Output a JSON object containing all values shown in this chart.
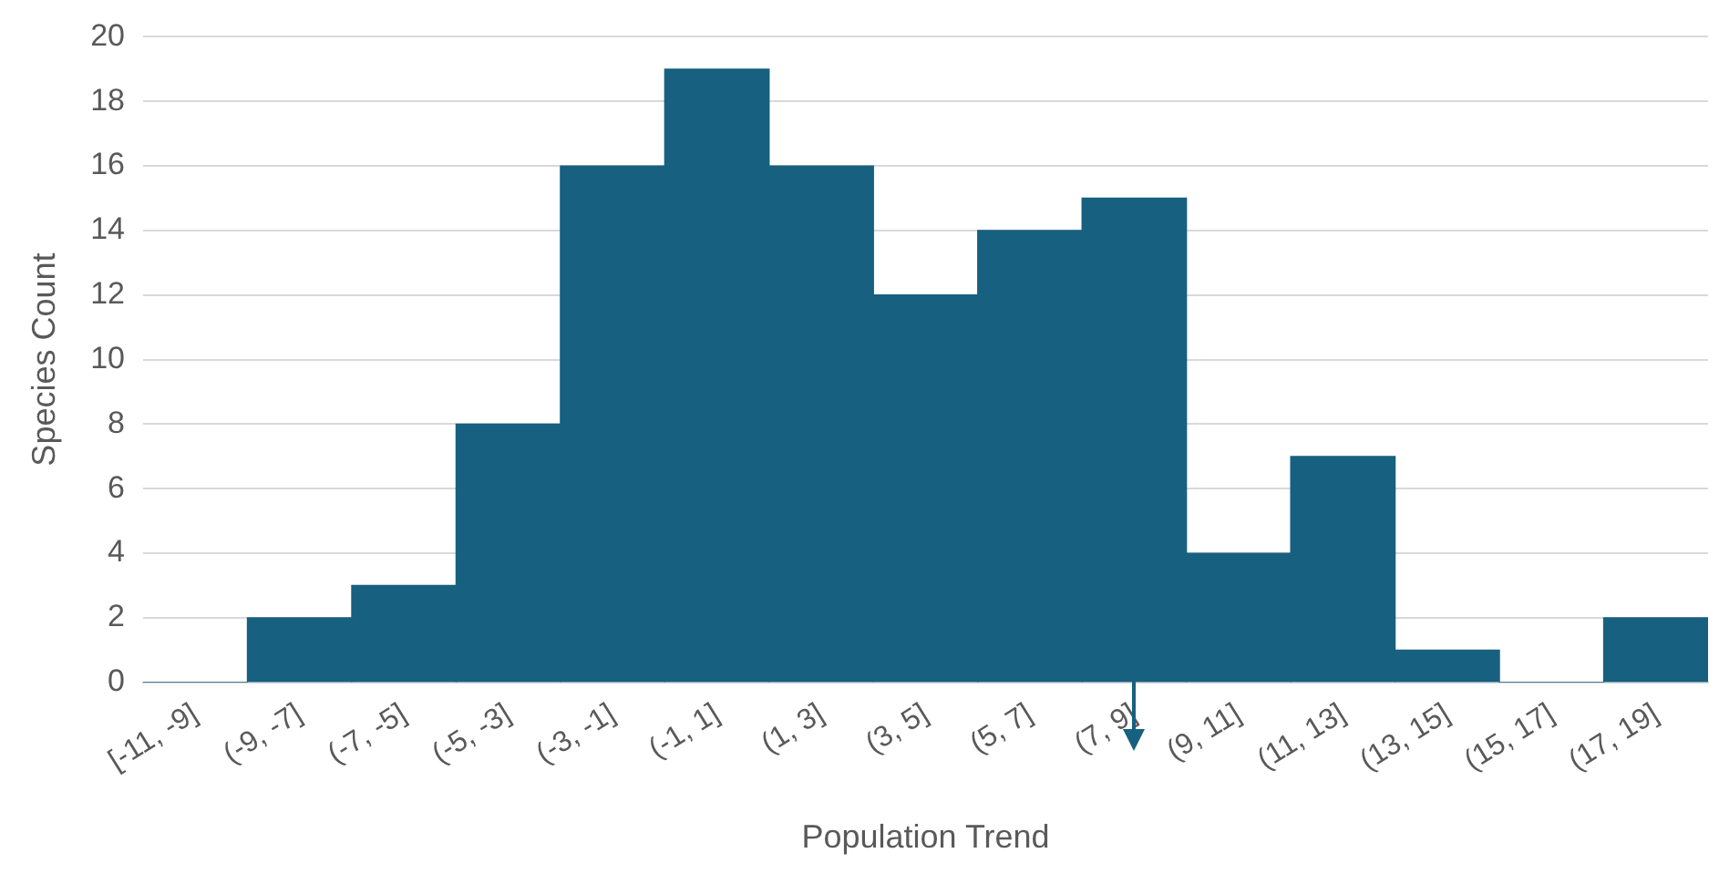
{
  "chart_data": {
    "type": "bar",
    "xlabel": "Population Trend",
    "ylabel": "Species Count",
    "categories": [
      "[-11, -9]",
      "(-9, -7]",
      "(-7, -5]",
      "(-5, -3]",
      "(-3, -1]",
      "(-1, 1]",
      "(1, 3]",
      "(3, 5]",
      "(5, 7]",
      "(7, 9]",
      "(9, 11]",
      "(11, 13]",
      "(13, 15]",
      "(15, 17]",
      "(17, 19]"
    ],
    "values": [
      0,
      2,
      3,
      8,
      16,
      19,
      16,
      12,
      14,
      15,
      4,
      7,
      1,
      0,
      2
    ],
    "color": "#17607f",
    "ylim": [
      0,
      20
    ],
    "yticks": [
      0,
      2,
      4,
      6,
      8,
      10,
      12,
      14,
      16,
      18,
      20
    ],
    "grid": "y",
    "legend": false
  }
}
